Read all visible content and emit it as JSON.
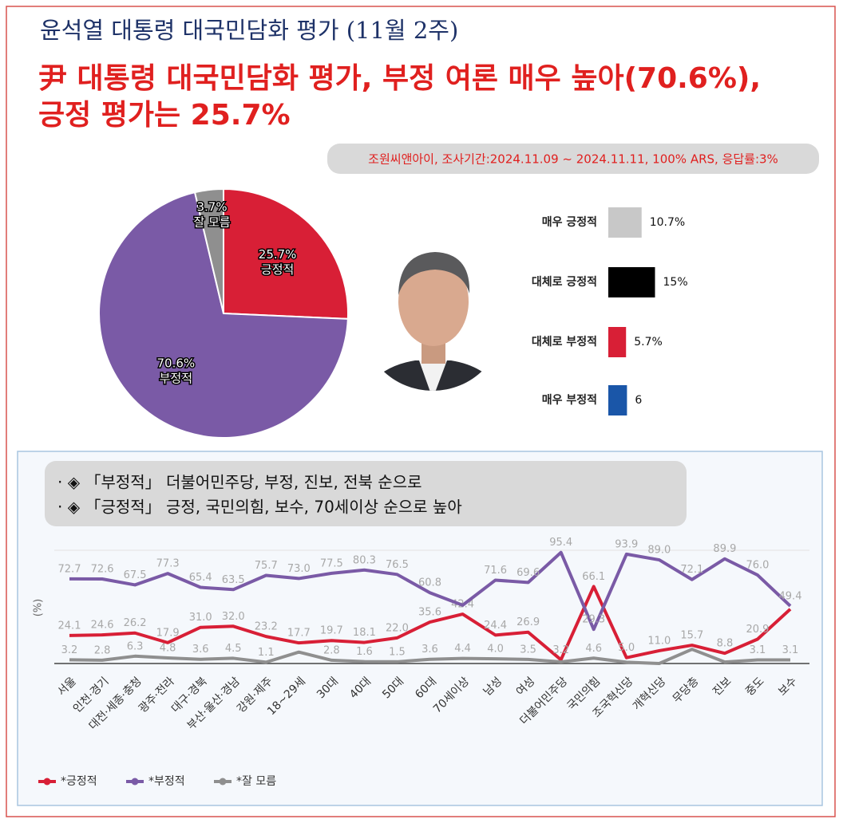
{
  "header": {
    "title": "윤석열 대통령 대국민담화 평가 (11월 2주)",
    "headline": [
      "尹 대통령 대국민담화 평가, 부정 여론 매우 높아(70.6%),",
      "긍정 평가는 25.7%"
    ],
    "source": "조원씨앤아이, 조사기간:2024.11.09 ~ 2024.11.11, 100% ARS, 응답률:3%",
    "notes": [
      "· ◈ 「부정적」 더불어민주당, 부정, 진보, 전북 순으로",
      "· ◈ 「긍정적」 긍정, 국민의힘, 보수, 70세이상 순으로 높아"
    ]
  },
  "chart_data": [
    {
      "type": "pie",
      "categories": [
        "긍정적",
        "부정적",
        "잘 모름"
      ],
      "values": [
        25.7,
        70.6,
        3.7
      ],
      "value_labels": [
        "25.7%",
        "70.6%",
        "3.7%"
      ],
      "colors": [
        "#d81f36",
        "#7a5aa6",
        "#8f8f8f"
      ]
    },
    {
      "type": "bar",
      "categories": [
        "매우 긍정적",
        "대체로 긍정적",
        "대체로 부정적",
        "매우 부정적"
      ],
      "values": [
        10.7,
        15,
        5.7,
        6
      ],
      "value_labels": [
        "10.7%",
        "15%",
        "5.7%",
        "6"
      ],
      "colors": [
        "#c8c8c8",
        "#000000",
        "#d81f36",
        "#1a56a8"
      ]
    },
    {
      "type": "line",
      "y_label": "(%)",
      "ylim": [
        0,
        100
      ],
      "categories": [
        "서울",
        "인천·경기",
        "대전·세종·충청",
        "광주·전라",
        "대구·경북",
        "부산·울산·경남",
        "강원·제주",
        "18~29세",
        "30대",
        "40대",
        "50대",
        "60대",
        "70세이상",
        "남성",
        "여성",
        "더불어민주당",
        "국민의힘",
        "조국혁신당",
        "개혁신당",
        "무당층",
        "진보",
        "중도",
        "보수"
      ],
      "series": [
        {
          "name": "*긍정적",
          "color": "#d81f36",
          "values": [
            24.1,
            24.6,
            26.2,
            17.9,
            31.0,
            32.0,
            23.2,
            17.7,
            19.7,
            18.1,
            22.0,
            35.6,
            42.4,
            24.4,
            26.9,
            3.2,
            66.1,
            5.0,
            11.0,
            15.7,
            8.8,
            20.9,
            46.7
          ],
          "value_labels": [
            "24.1",
            "24.6",
            "26.2",
            "17.9",
            "31.0",
            "32.0",
            "23.2",
            "17.7",
            "19.7",
            "18.1",
            "22.0",
            "35.6",
            "42.4",
            "24.4",
            "26.9",
            "3.2",
            "66.1",
            "5.0",
            "11.0",
            "15.7",
            "8.8",
            "20.9",
            null
          ]
        },
        {
          "name": "*부정적",
          "color": "#7a5aa6",
          "values": [
            72.7,
            72.6,
            67.5,
            77.3,
            65.4,
            63.5,
            75.7,
            73.0,
            77.5,
            80.3,
            76.5,
            60.8,
            50.1,
            71.6,
            69.6,
            95.4,
            29.3,
            93.9,
            89.0,
            72.1,
            89.9,
            76.0,
            49.4
          ],
          "value_labels": [
            "72.7",
            "72.6",
            "67.5",
            "77.3",
            "65.4",
            "63.5",
            "75.7",
            "73.0",
            "77.5",
            "80.3",
            "76.5",
            "60.8",
            null,
            "71.6",
            "69.6",
            "95.4",
            "29.3",
            "93.9",
            "89.0",
            "72.1",
            "89.9",
            "76.0",
            "49.4"
          ]
        },
        {
          "name": "*잘 모름",
          "color": "#8f8f8f",
          "values": [
            3.2,
            2.8,
            6.3,
            4.8,
            3.6,
            4.5,
            1.1,
            9.8,
            2.8,
            1.6,
            1.5,
            3.6,
            4.4,
            4.0,
            3.5,
            1.4,
            4.6,
            1.1,
            0.0,
            12.2,
            1.3,
            3.1,
            3.1
          ],
          "value_labels": [
            "3.2",
            "2.8",
            "6.3",
            "4.8",
            "3.6",
            "4.5",
            "1.1",
            null,
            "2.8",
            "1.6",
            "1.5",
            "3.6",
            "4.4",
            "4.0",
            "3.5",
            null,
            "4.6",
            null,
            null,
            null,
            null,
            "3.1",
            "3.1"
          ]
        }
      ]
    }
  ]
}
